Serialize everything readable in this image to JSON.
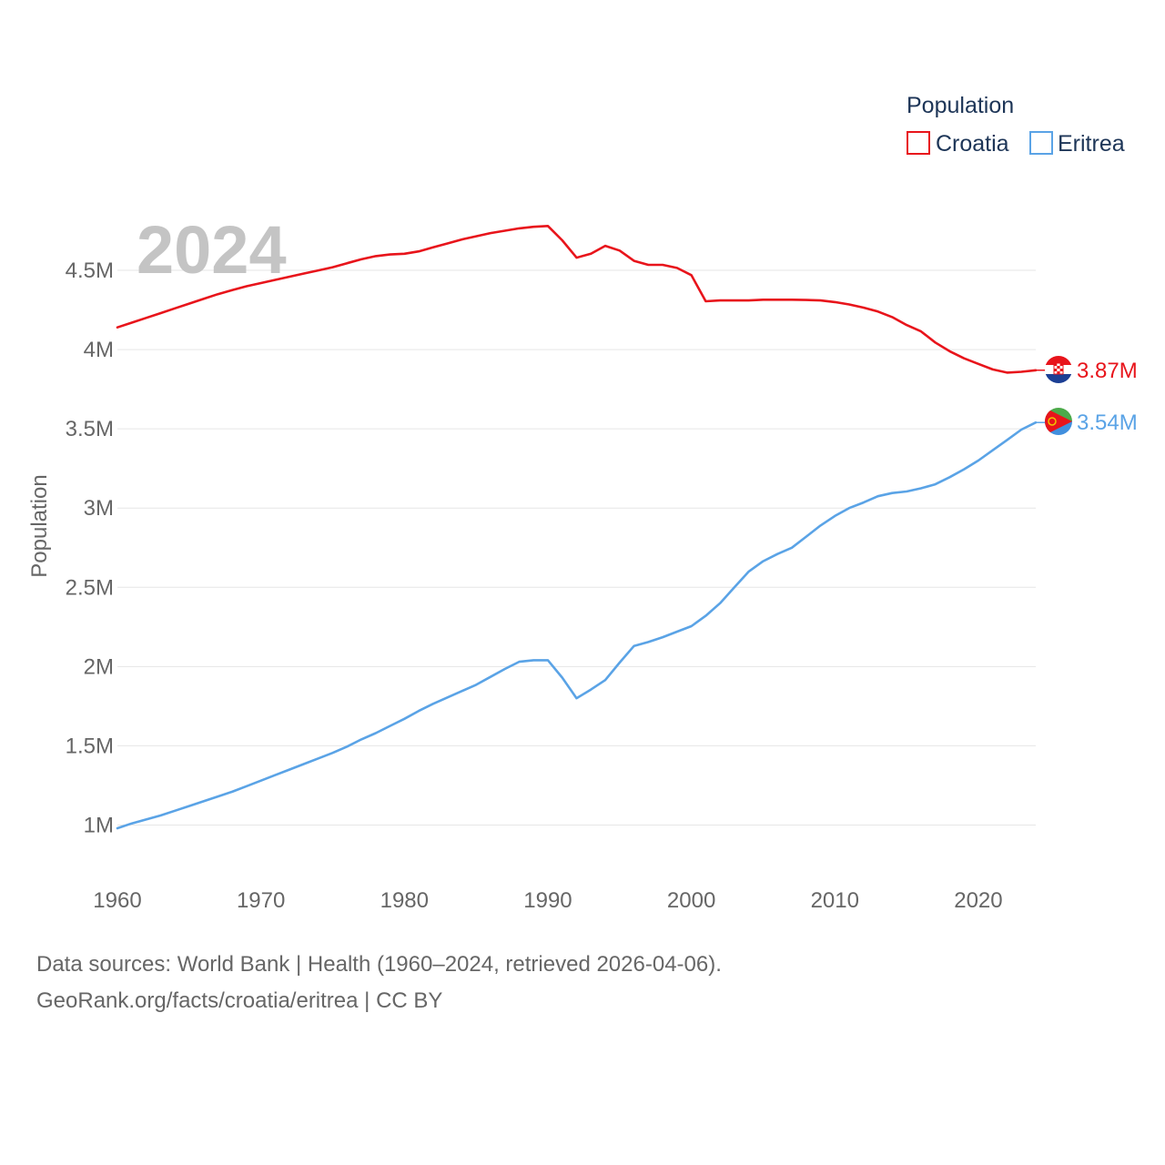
{
  "chart_data": {
    "type": "line",
    "year_label": "2024",
    "ylabel": "Population",
    "xlabel": "",
    "xlim": [
      1960,
      2024
    ],
    "ylim": [
      0.75,
      5.0
    ],
    "x_ticks": [
      1960,
      1970,
      1980,
      1990,
      2000,
      2010,
      2020
    ],
    "x_tick_labels": [
      "1960",
      "1970",
      "1980",
      "1990",
      "2000",
      "2010",
      "2020"
    ],
    "y_ticks": [
      1,
      1.5,
      2,
      2.5,
      3,
      3.5,
      4,
      4.5
    ],
    "y_tick_labels": [
      "1M",
      "1.5M",
      "2M",
      "2.5M",
      "3M",
      "3.5M",
      "4M",
      "4.5M"
    ],
    "legend": {
      "title": "Population",
      "position": "top-right"
    },
    "grid": true,
    "x": [
      1960,
      1961,
      1962,
      1963,
      1964,
      1965,
      1966,
      1967,
      1968,
      1969,
      1970,
      1971,
      1972,
      1973,
      1974,
      1975,
      1976,
      1977,
      1978,
      1979,
      1980,
      1981,
      1982,
      1983,
      1984,
      1985,
      1986,
      1987,
      1988,
      1989,
      1990,
      1991,
      1992,
      1993,
      1994,
      1995,
      1996,
      1997,
      1998,
      1999,
      2000,
      2001,
      2002,
      2003,
      2004,
      2005,
      2006,
      2007,
      2008,
      2009,
      2010,
      2011,
      2012,
      2013,
      2014,
      2015,
      2016,
      2017,
      2018,
      2019,
      2020,
      2021,
      2022,
      2023,
      2024
    ],
    "series": [
      {
        "name": "Croatia",
        "color": "#e8141b",
        "flag": "croatia-flag",
        "end_label": "3.87M",
        "values": [
          4.14,
          4.17,
          4.2,
          4.23,
          4.26,
          4.29,
          4.32,
          4.35,
          4.375,
          4.4,
          4.42,
          4.44,
          4.46,
          4.48,
          4.5,
          4.52,
          4.545,
          4.57,
          4.59,
          4.6,
          4.605,
          4.62,
          4.645,
          4.67,
          4.695,
          4.715,
          4.735,
          4.75,
          4.765,
          4.775,
          4.78,
          4.69,
          4.58,
          4.605,
          4.655,
          4.625,
          4.56,
          4.535,
          4.535,
          4.515,
          4.47,
          4.305,
          4.31,
          4.31,
          4.31,
          4.315,
          4.315,
          4.315,
          4.313,
          4.31,
          4.3,
          4.285,
          4.265,
          4.24,
          4.205,
          4.155,
          4.115,
          4.045,
          3.99,
          3.945,
          3.91,
          3.875,
          3.855,
          3.86,
          3.87
        ]
      },
      {
        "name": "Eritrea",
        "color": "#5aa3e6",
        "flag": "eritrea-flag",
        "end_label": "3.54M",
        "values": [
          0.98,
          1.01,
          1.035,
          1.06,
          1.09,
          1.12,
          1.15,
          1.18,
          1.21,
          1.245,
          1.28,
          1.315,
          1.35,
          1.385,
          1.42,
          1.455,
          1.495,
          1.54,
          1.58,
          1.625,
          1.67,
          1.72,
          1.765,
          1.805,
          1.845,
          1.885,
          1.935,
          1.985,
          2.03,
          2.04,
          2.04,
          1.93,
          1.8,
          1.855,
          1.915,
          2.025,
          2.13,
          2.155,
          2.185,
          2.22,
          2.255,
          2.32,
          2.4,
          2.5,
          2.6,
          2.665,
          2.71,
          2.75,
          2.82,
          2.89,
          2.95,
          3.0,
          3.035,
          3.075,
          3.095,
          3.105,
          3.125,
          3.15,
          3.195,
          3.245,
          3.3,
          3.365,
          3.43,
          3.495,
          3.54
        ]
      }
    ]
  },
  "footer": {
    "line1": "Data sources: World Bank | Health (1960–2024, retrieved 2026-04-06).",
    "line2": "GeoRank.org/facts/croatia/eritrea | CC BY"
  }
}
